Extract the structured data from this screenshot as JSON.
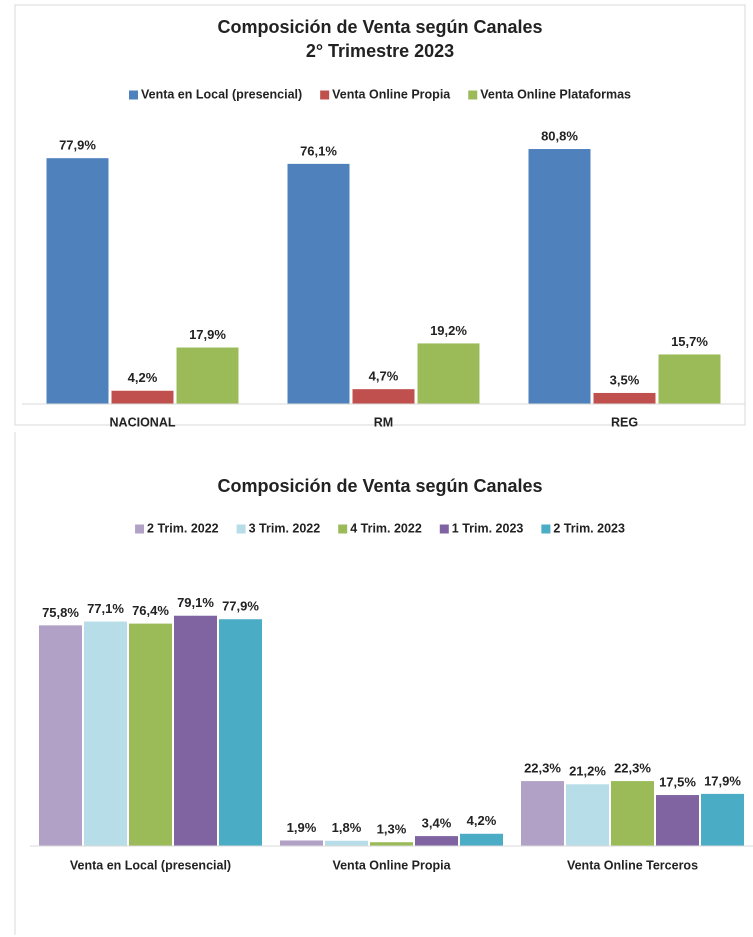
{
  "chart_data": [
    {
      "type": "bar",
      "title": "Composición de Venta según Canales",
      "subtitle": "2° Trimestre 2023",
      "categories": [
        "NACIONAL",
        "RM",
        "REG"
      ],
      "series": [
        {
          "name": "Venta en Local (presencial)",
          "color": "#4f81bd",
          "values": [
            77.9,
            76.1,
            80.8
          ],
          "value_labels": [
            "77,9%",
            "76,1%",
            "80,8%"
          ]
        },
        {
          "name": "Venta  Online Propia",
          "color": "#c0504d",
          "values": [
            4.2,
            4.7,
            3.5
          ],
          "value_labels": [
            "4,2%",
            "4,7%",
            "3,5%"
          ]
        },
        {
          "name": "Venta  Online Plataformas",
          "color": "#9bbb59",
          "values": [
            17.9,
            19.2,
            15.7
          ],
          "value_labels": [
            "17,9%",
            "19,2%",
            "15,7%"
          ]
        }
      ],
      "ylim": [
        0,
        90
      ],
      "legend": "top"
    },
    {
      "type": "bar",
      "title": "Composición de Venta según Canales",
      "categories": [
        "Venta en Local (presencial)",
        "Venta  Online Propia",
        "Venta  Online Terceros"
      ],
      "series": [
        {
          "name": "2 Trim. 2022",
          "color": "#b2a1c7",
          "values": [
            75.8,
            1.9,
            22.3
          ],
          "value_labels": [
            "75,8%",
            "1,9%",
            "22,3%"
          ]
        },
        {
          "name": "3 Trim. 2022",
          "color": "#b7dee8",
          "values": [
            77.1,
            1.8,
            21.2
          ],
          "value_labels": [
            "77,1%",
            "1,8%",
            "21,2%"
          ]
        },
        {
          "name": "4 Trim. 2022",
          "color": "#9bbb59",
          "values": [
            76.4,
            1.3,
            22.3
          ],
          "value_labels": [
            "76,4%",
            "1,3%",
            "22,3%"
          ]
        },
        {
          "name": "1 Trim. 2023",
          "color": "#8064a2",
          "values": [
            79.1,
            3.4,
            17.5
          ],
          "value_labels": [
            "79,1%",
            "3,4%",
            "17,5%"
          ]
        },
        {
          "name": "2 Trim. 2023",
          "color": "#4bacc6",
          "values": [
            77.9,
            4.2,
            17.9
          ],
          "value_labels": [
            "77,9%",
            "4,2%",
            "17,9%"
          ]
        }
      ],
      "ylim": [
        0,
        90
      ],
      "legend": "top"
    }
  ]
}
